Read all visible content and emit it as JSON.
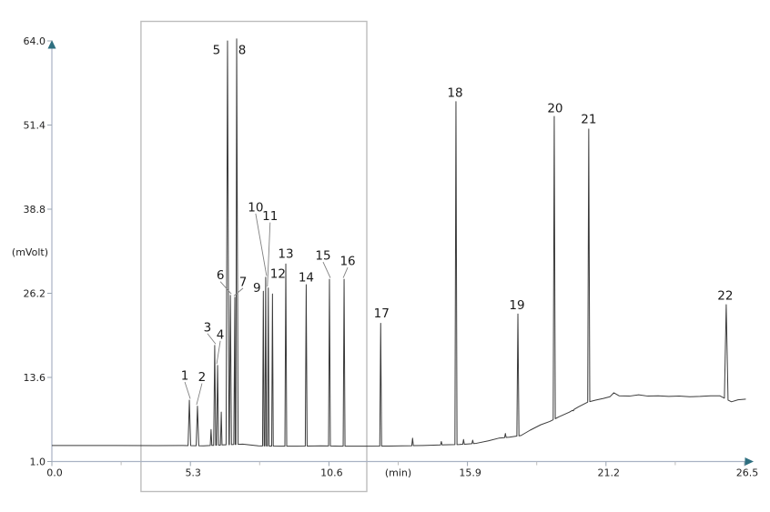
{
  "chart_data": {
    "type": "line",
    "subtype": "chromatogram",
    "title": "",
    "xlabel": "(min)",
    "ylabel": "(mVolt)",
    "x_axis": {
      "min": 0.0,
      "max": 26.5,
      "major_tick_values": [
        0.0,
        5.3,
        10.6,
        15.9,
        21.2,
        26.5
      ],
      "major_tick_labels": [
        "0.0",
        "5.3",
        "10.6",
        "15.9",
        "21.2",
        "26.5"
      ],
      "minor_tick_values": [
        2.65,
        7.95,
        13.25,
        18.55,
        23.85
      ],
      "unit_label": "(min)",
      "unit_label_at": 13.25
    },
    "y_axis": {
      "min": 1.0,
      "max": 64.0,
      "tick_values": [
        64.0,
        51.4,
        38.8,
        26.2,
        13.6,
        1.0
      ],
      "tick_labels": [
        "64.0",
        "51.4",
        "38.8",
        "26.2",
        "13.6",
        "1.0"
      ],
      "unit_label": "(mVolt)"
    },
    "grid": false,
    "legend": false,
    "highlight_box": {
      "t_start": 3.41,
      "t_end": 12.05
    },
    "peaks": [
      {
        "label": "1",
        "rt_min": 5.26,
        "height_mv": 10.2,
        "label_offset": [
          -5,
          -27
        ],
        "leader": true,
        "halfwidth_min": 0.05
      },
      {
        "label": "2",
        "rt_min": 5.57,
        "height_mv": 9.3,
        "label_offset": [
          5,
          -32
        ],
        "leader": true,
        "halfwidth_min": 0.05
      },
      {
        "label": "3",
        "rt_min": 6.23,
        "height_mv": 18.4,
        "label_offset": [
          -8,
          -20
        ],
        "leader": true,
        "halfwidth_min": 0.04
      },
      {
        "label": "4",
        "rt_min": 6.34,
        "height_mv": 15.4,
        "label_offset": [
          3,
          -34
        ],
        "leader": true,
        "halfwidth_min": 0.04
      },
      {
        "label": "5",
        "rt_min": 6.72,
        "height_mv": 64.0,
        "label_offset": [
          -12,
          10
        ],
        "leader": false,
        "halfwidth_min": 0.055
      },
      {
        "label": "6",
        "rt_min": 6.83,
        "height_mv": 25.9,
        "label_offset": [
          -11,
          -22
        ],
        "leader": true,
        "halfwidth_min": 0.04
      },
      {
        "label": "7",
        "rt_min": 7.0,
        "height_mv": 25.6,
        "label_offset": [
          9,
          -17
        ],
        "leader": true,
        "halfwidth_min": 0.04
      },
      {
        "label": "8",
        "rt_min": 7.07,
        "height_mv": 64.3,
        "label_offset": [
          6,
          12
        ],
        "leader": false,
        "halfwidth_min": 0.055
      },
      {
        "label": "9",
        "rt_min": 8.09,
        "height_mv": 26.5,
        "label_offset": [
          -7,
          -4
        ],
        "leader": false,
        "halfwidth_min": 0.03
      },
      {
        "label": "10",
        "rt_min": 8.18,
        "height_mv": 28.6,
        "label_offset": [
          -11,
          -77
        ],
        "leader": true,
        "halfwidth_min": 0.03
      },
      {
        "label": "11",
        "rt_min": 8.28,
        "height_mv": 27.0,
        "label_offset": [
          2,
          -79
        ],
        "leader": true,
        "halfwidth_min": 0.03
      },
      {
        "label": "12",
        "rt_min": 8.44,
        "height_mv": 26.1,
        "label_offset": [
          6,
          -22
        ],
        "leader": false,
        "halfwidth_min": 0.03
      },
      {
        "label": "13",
        "rt_min": 8.95,
        "height_mv": 30.6,
        "label_offset": [
          0,
          -11
        ],
        "leader": false,
        "halfwidth_min": 0.035
      },
      {
        "label": "14",
        "rt_min": 9.73,
        "height_mv": 27.5,
        "label_offset": [
          0,
          -8
        ],
        "leader": false,
        "halfwidth_min": 0.035
      },
      {
        "label": "15",
        "rt_min": 10.62,
        "height_mv": 28.3,
        "label_offset": [
          -7,
          -26
        ],
        "leader": true,
        "halfwidth_min": 0.035
      },
      {
        "label": "16",
        "rt_min": 11.18,
        "height_mv": 28.3,
        "label_offset": [
          4,
          -20
        ],
        "leader": true,
        "halfwidth_min": 0.035
      },
      {
        "label": "17",
        "rt_min": 12.58,
        "height_mv": 21.7,
        "label_offset": [
          1,
          -11
        ],
        "leader": false,
        "halfwidth_min": 0.035
      },
      {
        "label": "18",
        "rt_min": 15.46,
        "height_mv": 54.9,
        "label_offset": [
          -1,
          -10
        ],
        "leader": false,
        "halfwidth_min": 0.04
      },
      {
        "label": "19",
        "rt_min": 17.83,
        "height_mv": 23.1,
        "label_offset": [
          -1,
          -10
        ],
        "leader": false,
        "halfwidth_min": 0.04
      },
      {
        "label": "20",
        "rt_min": 19.22,
        "height_mv": 52.7,
        "label_offset": [
          1,
          -9
        ],
        "leader": false,
        "halfwidth_min": 0.04
      },
      {
        "label": "21",
        "rt_min": 20.54,
        "height_mv": 50.8,
        "label_offset": [
          0,
          -11
        ],
        "leader": false,
        "halfwidth_min": 0.04
      },
      {
        "label": "22",
        "rt_min": 25.8,
        "height_mv": 24.5,
        "label_offset": [
          -1,
          -10
        ],
        "leader": false,
        "halfwidth_min": 0.07
      }
    ],
    "unlabeled_peaks": [
      {
        "rt_min": 6.09,
        "height_mv": 5.8,
        "halfwidth_min": 0.03
      },
      {
        "rt_min": 6.48,
        "height_mv": 8.4,
        "halfwidth_min": 0.03
      },
      {
        "rt_min": 13.8,
        "height_mv": 4.5,
        "halfwidth_min": 0.03
      },
      {
        "rt_min": 14.9,
        "height_mv": 4.0,
        "halfwidth_min": 0.03
      },
      {
        "rt_min": 15.75,
        "height_mv": 4.3,
        "halfwidth_min": 0.03
      },
      {
        "rt_min": 16.1,
        "height_mv": 4.2,
        "halfwidth_min": 0.03
      },
      {
        "rt_min": 17.35,
        "height_mv": 5.2,
        "halfwidth_min": 0.03
      },
      {
        "rt_min": 19.95,
        "height_mv": 8.6,
        "halfwidth_min": 0.03
      }
    ],
    "baseline_mv": [
      [
        0,
        3.4
      ],
      [
        2,
        3.4
      ],
      [
        4,
        3.38
      ],
      [
        5,
        3.4
      ],
      [
        5.8,
        3.35
      ],
      [
        6.6,
        3.5
      ],
      [
        7.3,
        3.6
      ],
      [
        7.9,
        3.35
      ],
      [
        8.7,
        3.3
      ],
      [
        9.4,
        3.3
      ],
      [
        10.3,
        3.35
      ],
      [
        11,
        3.3
      ],
      [
        12,
        3.3
      ],
      [
        12.9,
        3.32
      ],
      [
        13.4,
        3.35
      ],
      [
        14.2,
        3.4
      ],
      [
        15,
        3.5
      ],
      [
        15.6,
        3.55
      ],
      [
        16.2,
        3.7
      ],
      [
        16.7,
        4.1
      ],
      [
        17.1,
        4.5
      ],
      [
        17.5,
        4.65
      ],
      [
        17.95,
        4.9
      ],
      [
        18.3,
        5.7
      ],
      [
        18.7,
        6.5
      ],
      [
        19.05,
        7.0
      ],
      [
        19.4,
        7.7
      ],
      [
        19.8,
        8.4
      ],
      [
        20.15,
        9.2
      ],
      [
        20.5,
        9.9
      ],
      [
        20.8,
        10.2
      ],
      [
        21.1,
        10.45
      ],
      [
        21.35,
        10.7
      ],
      [
        21.5,
        11.3
      ],
      [
        21.7,
        10.85
      ],
      [
        22.1,
        10.8
      ],
      [
        22.45,
        11.0
      ],
      [
        22.8,
        10.8
      ],
      [
        23.2,
        10.85
      ],
      [
        23.6,
        10.75
      ],
      [
        24,
        10.8
      ],
      [
        24.4,
        10.7
      ],
      [
        24.8,
        10.75
      ],
      [
        25.2,
        10.85
      ],
      [
        25.55,
        10.85
      ],
      [
        26.0,
        9.95
      ],
      [
        26.25,
        10.25
      ],
      [
        26.55,
        10.35
      ]
    ],
    "colors": {
      "background": "#ffffff",
      "trace": "#3b3b3b",
      "axis_line": "#a9b2c4",
      "arrow": "#2e6f80",
      "major_tick": "#9aa4b0",
      "minor_tick": "#bcbcbc",
      "tick_text": "#1f1f1f",
      "peak_label_text": "#1a1a1a",
      "leader_line": "#808080",
      "highlight_box_border": "#bdbdbd"
    }
  }
}
